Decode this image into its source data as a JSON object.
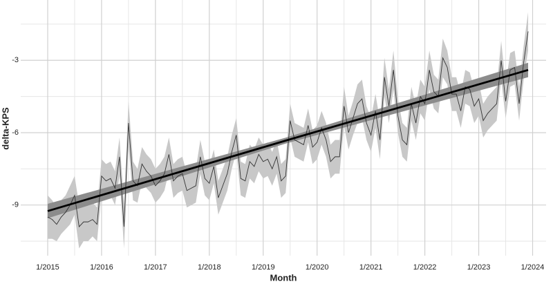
{
  "chart_data": {
    "type": "line",
    "x_label": "Month",
    "y_label": "delta-KPS",
    "x": [
      "2015-01",
      "2015-02",
      "2015-03",
      "2015-04",
      "2015-05",
      "2015-06",
      "2015-07",
      "2015-08",
      "2015-09",
      "2015-10",
      "2015-11",
      "2015-12",
      "2016-01",
      "2016-02",
      "2016-03",
      "2016-04",
      "2016-05",
      "2016-06",
      "2016-07",
      "2016-08",
      "2016-09",
      "2016-10",
      "2016-11",
      "2016-12",
      "2017-01",
      "2017-02",
      "2017-03",
      "2017-04",
      "2017-05",
      "2017-06",
      "2017-07",
      "2017-08",
      "2017-09",
      "2017-10",
      "2017-11",
      "2017-12",
      "2018-01",
      "2018-02",
      "2018-03",
      "2018-04",
      "2018-05",
      "2018-06",
      "2018-07",
      "2018-08",
      "2018-09",
      "2018-10",
      "2018-11",
      "2018-12",
      "2019-01",
      "2019-02",
      "2019-03",
      "2019-04",
      "2019-05",
      "2019-06",
      "2019-07",
      "2019-08",
      "2019-09",
      "2019-10",
      "2019-11",
      "2019-12",
      "2020-01",
      "2020-02",
      "2020-03",
      "2020-04",
      "2020-05",
      "2020-06",
      "2020-07",
      "2020-08",
      "2020-09",
      "2020-10",
      "2020-11",
      "2020-12",
      "2021-01",
      "2021-02",
      "2021-03",
      "2021-04",
      "2021-05",
      "2021-06",
      "2021-07",
      "2021-08",
      "2021-09",
      "2021-10",
      "2021-11",
      "2021-12",
      "2022-01",
      "2022-02",
      "2022-03",
      "2022-04",
      "2022-05",
      "2022-06",
      "2022-07",
      "2022-08",
      "2022-09",
      "2022-10",
      "2022-11",
      "2022-12",
      "2023-01",
      "2023-02",
      "2023-03",
      "2023-04",
      "2023-05",
      "2023-06",
      "2023-07",
      "2023-08",
      "2023-09",
      "2023-10",
      "2023-11",
      "2023-12"
    ],
    "series": [
      {
        "color": "#333333",
        "band_color": "#c8c8c8",
        "values": [
          -9.5,
          -9.6,
          -9.8,
          -9.5,
          -9.3,
          -9.0,
          -8.6,
          -9.9,
          -9.7,
          -9.7,
          -9.6,
          -9.8,
          -7.8,
          -8.0,
          -7.9,
          -8.3,
          -7.0,
          -9.9,
          -5.6,
          -8.0,
          -8.2,
          -7.3,
          -7.6,
          -7.8,
          -8.2,
          -8.0,
          -7.7,
          -6.9,
          -8.0,
          -7.8,
          -7.7,
          -8.4,
          -8.3,
          -8.2,
          -7.0,
          -7.9,
          -8.1,
          -7.4,
          -8.7,
          -8.2,
          -7.7,
          -6.8,
          -6.1,
          -7.9,
          -8.0,
          -7.2,
          -7.4,
          -6.9,
          -7.2,
          -7.1,
          -7.5,
          -7.0,
          -8.0,
          -7.8,
          -5.5,
          -6.3,
          -6.4,
          -6.5,
          -5.7,
          -6.6,
          -6.4,
          -5.8,
          -6.3,
          -7.2,
          -7.0,
          -7.0,
          -4.9,
          -6.0,
          -5.4,
          -4.8,
          -4.6,
          -5.6,
          -6.1,
          -5.1,
          -6.3,
          -3.7,
          -4.9,
          -3.4,
          -5.3,
          -6.3,
          -6.5,
          -4.8,
          -5.6,
          -4.5,
          -4.8,
          -3.4,
          -4.3,
          -4.5,
          -2.9,
          -3.3,
          -4.4,
          -4.4,
          -5.1,
          -4.1,
          -4.2,
          -4.9,
          -4.6,
          -5.5,
          -5.2,
          -5.0,
          -4.8,
          -3.0,
          -4.7,
          -3.4,
          -3.3,
          -4.8,
          -3.1,
          -1.8
        ],
        "errors": [
          0.9,
          0.8,
          0.7,
          0.7,
          0.7,
          0.8,
          0.8,
          0.9,
          0.8,
          0.8,
          0.7,
          0.7,
          0.7,
          0.7,
          0.7,
          0.7,
          0.8,
          0.9,
          0.9,
          0.8,
          0.7,
          0.7,
          0.7,
          0.7,
          0.7,
          0.7,
          0.7,
          0.7,
          0.7,
          0.7,
          0.7,
          0.7,
          0.7,
          0.7,
          0.7,
          0.7,
          0.7,
          0.7,
          0.7,
          0.7,
          0.7,
          0.7,
          0.7,
          0.7,
          0.7,
          0.7,
          0.7,
          0.7,
          0.7,
          0.7,
          0.7,
          0.7,
          0.7,
          0.7,
          0.7,
          0.7,
          0.7,
          0.7,
          0.7,
          0.7,
          0.7,
          0.7,
          0.7,
          0.7,
          0.7,
          0.7,
          0.8,
          0.7,
          0.7,
          0.8,
          0.8,
          0.7,
          0.7,
          0.7,
          0.8,
          0.8,
          0.7,
          0.8,
          0.7,
          0.7,
          0.7,
          0.7,
          0.7,
          0.7,
          0.7,
          0.8,
          0.7,
          0.7,
          0.8,
          0.7,
          0.7,
          0.7,
          0.7,
          0.7,
          0.7,
          0.7,
          0.7,
          0.7,
          0.7,
          0.7,
          0.7,
          0.8,
          0.7,
          0.7,
          0.7,
          0.7,
          0.7,
          0.8
        ]
      }
    ],
    "trend": {
      "color": "#000000",
      "band_color": "#8c8c8c",
      "x": [
        "2015-01",
        "2019-06",
        "2023-12"
      ],
      "values": [
        -9.25,
        -6.33,
        -3.4
      ],
      "errors": [
        0.3,
        0.12,
        0.3
      ]
    },
    "xlim": [
      "2014-07",
      "2024-04"
    ],
    "ylim": [
      -11.1,
      -0.5
    ],
    "xticks": [
      {
        "value": "2015-01",
        "label": "1/2015"
      },
      {
        "value": "2016-01",
        "label": "1/2016"
      },
      {
        "value": "2017-01",
        "label": "1/2017"
      },
      {
        "value": "2018-01",
        "label": "1/2018"
      },
      {
        "value": "2019-01",
        "label": "1/2019"
      },
      {
        "value": "2020-01",
        "label": "1/2020"
      },
      {
        "value": "2021-01",
        "label": "1/2021"
      },
      {
        "value": "2022-01",
        "label": "1/2022"
      },
      {
        "value": "2023-01",
        "label": "1/2023"
      },
      {
        "value": "2024-01",
        "label": "1/2024"
      }
    ],
    "xminor": [
      "2015-07",
      "2016-07",
      "2017-07",
      "2018-07",
      "2019-07",
      "2020-07",
      "2021-07",
      "2022-07",
      "2023-07"
    ],
    "yticks": [
      -3,
      -6,
      -9
    ],
    "yminor": [
      -1.5,
      -4.5,
      -7.5,
      -10.5
    ],
    "grid": true
  }
}
